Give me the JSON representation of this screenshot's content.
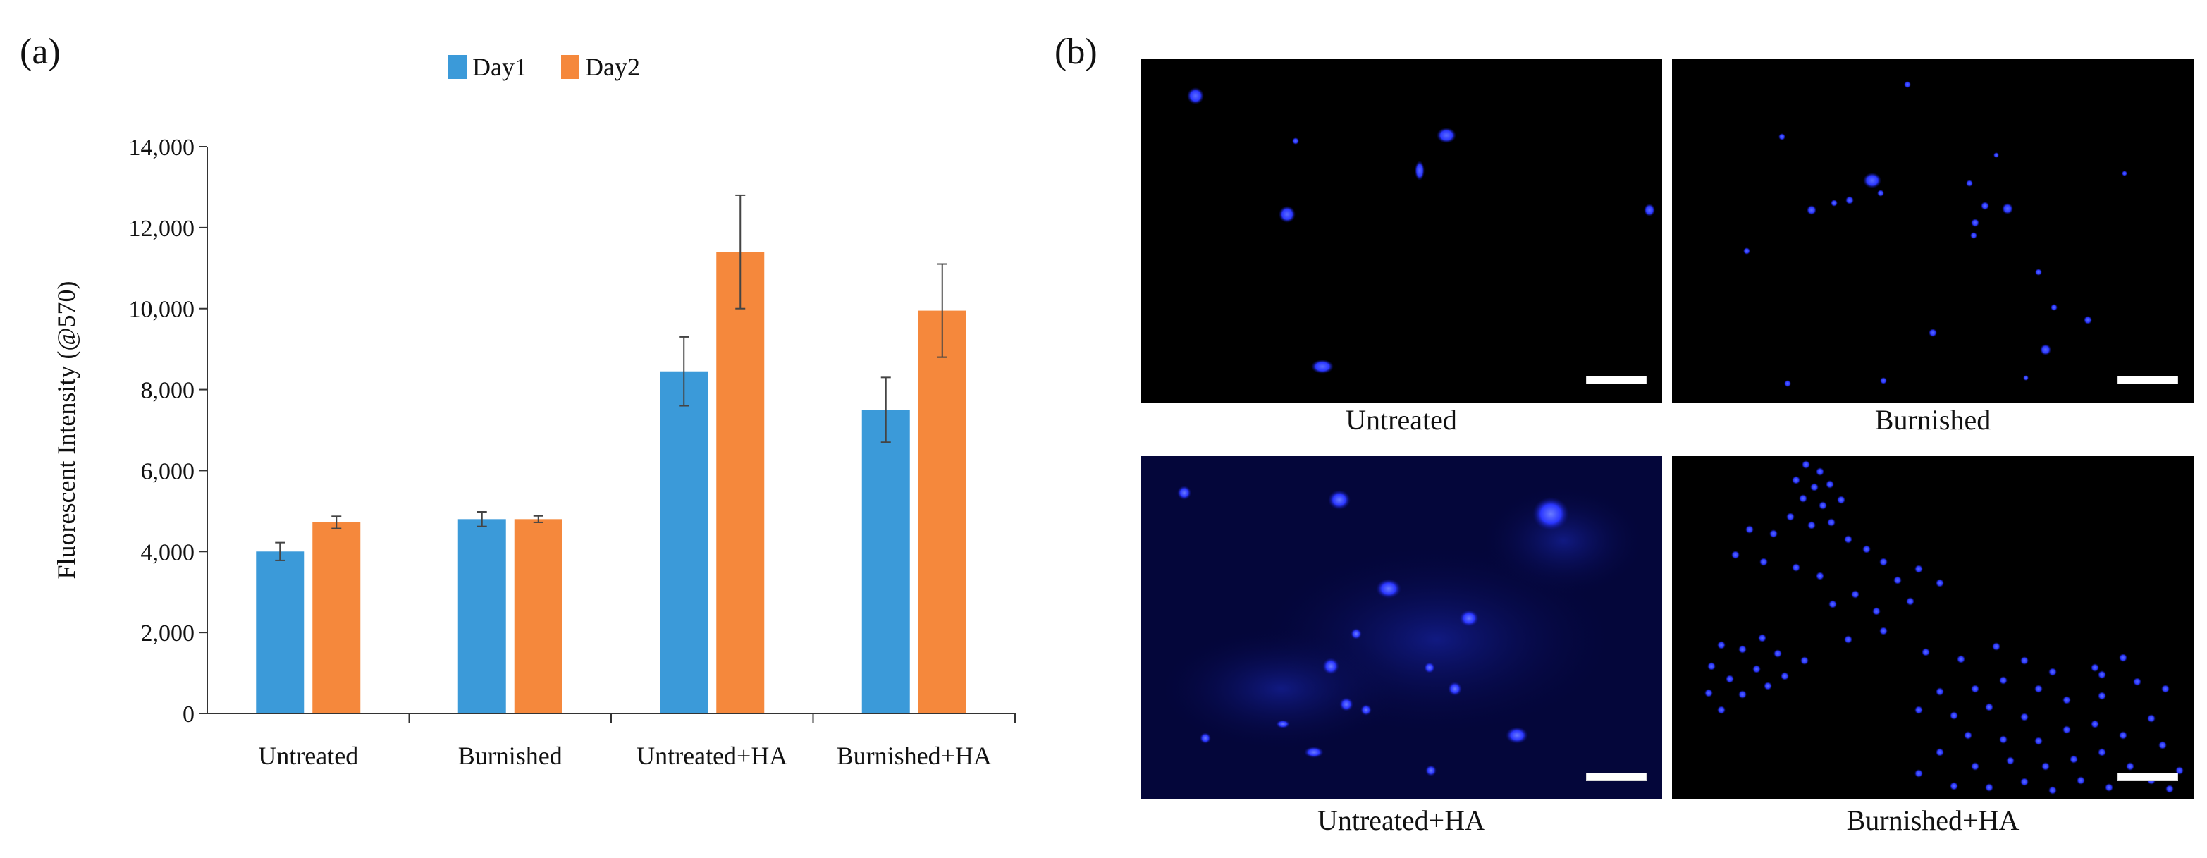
{
  "panel_labels": {
    "a": "(a)",
    "b": "(b)"
  },
  "chart_data": {
    "type": "bar",
    "categories": [
      "Untreated",
      "Burnished",
      "Untreated+HA",
      "Burnished+HA"
    ],
    "series": [
      {
        "name": "Day1",
        "color": "#3b9ad9",
        "values": [
          4000,
          4800,
          8450,
          7500
        ],
        "errors": [
          220,
          180,
          850,
          800
        ]
      },
      {
        "name": "Day2",
        "color": "#f5883c",
        "values": [
          4720,
          4800,
          11400,
          9950
        ],
        "errors": [
          150,
          80,
          1400,
          1150
        ]
      }
    ],
    "ylabel": "Fluorescent Intensity (@570)",
    "ylim": [
      0,
      14000
    ],
    "yticks": [
      0,
      2000,
      4000,
      6000,
      8000,
      10000,
      12000,
      14000
    ],
    "ytick_labels": [
      "0",
      "2,000",
      "4,000",
      "6,000",
      "8,000",
      "10,000",
      "12,000",
      "14,000"
    ],
    "legend_position": "top-center",
    "grid": false
  },
  "micrographs": [
    {
      "caption": "Untreated",
      "icon": "cell-nuclei-fluorescence-image"
    },
    {
      "caption": "Burnished",
      "icon": "cell-nuclei-fluorescence-image"
    },
    {
      "caption": "Untreated+HA",
      "icon": "cell-nuclei-fluorescence-image"
    },
    {
      "caption": "Burnished+HA",
      "icon": "cell-nuclei-fluorescence-image"
    }
  ]
}
